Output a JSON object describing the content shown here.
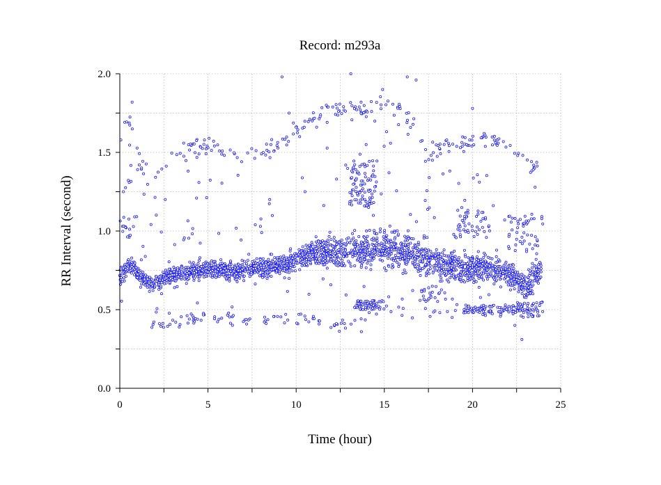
{
  "chart_data": {
    "type": "scatter",
    "title": "Record:  m293a",
    "xlabel": "Time (hour)",
    "ylabel": "RR Interval (second)",
    "xlim": [
      0,
      25
    ],
    "ylim": [
      0,
      2
    ],
    "xticks": [
      0,
      5,
      10,
      15,
      20,
      25
    ],
    "xtick_labels": [
      "0",
      "5",
      "10",
      "15",
      "20",
      "25"
    ],
    "yticks": [
      0,
      0.5,
      1,
      1.5,
      2
    ],
    "ytick_labels": [
      "0.0",
      "0.5",
      "1.0",
      "1.5",
      "2.0"
    ],
    "grid": true,
    "marker_color": "#1c1cf0",
    "band_anchors": [
      [
        0.0,
        0.72
      ],
      [
        0.5,
        0.78
      ],
      [
        0.8,
        0.77
      ],
      [
        1.2,
        0.7
      ],
      [
        1.8,
        0.66
      ],
      [
        2.5,
        0.7
      ],
      [
        3.5,
        0.73
      ],
      [
        4.5,
        0.75
      ],
      [
        5.5,
        0.76
      ],
      [
        6.5,
        0.74
      ],
      [
        7.5,
        0.76
      ],
      [
        8.5,
        0.77
      ],
      [
        9.5,
        0.8
      ],
      [
        10.5,
        0.85
      ],
      [
        11.5,
        0.86
      ],
      [
        12.5,
        0.87
      ],
      [
        13.5,
        0.88
      ],
      [
        14.5,
        0.9
      ],
      [
        15.5,
        0.88
      ],
      [
        16.5,
        0.85
      ],
      [
        17.5,
        0.82
      ],
      [
        18.5,
        0.78
      ],
      [
        19.5,
        0.76
      ],
      [
        20.5,
        0.77
      ],
      [
        21.5,
        0.75
      ],
      [
        22.5,
        0.7
      ],
      [
        23.0,
        0.65
      ],
      [
        23.5,
        0.7
      ],
      [
        23.9,
        0.76
      ]
    ],
    "band_spread": [
      [
        0.0,
        0.08
      ],
      [
        1.0,
        0.06
      ],
      [
        9.0,
        0.07
      ],
      [
        11.0,
        0.11
      ],
      [
        15.0,
        0.14
      ],
      [
        17.0,
        0.13
      ],
      [
        21.0,
        0.1
      ],
      [
        23.9,
        0.12
      ]
    ],
    "clusters": [
      {
        "x": [
          13.0,
          14.6
        ],
        "y": [
          1.15,
          1.45
        ],
        "n": 90
      },
      {
        "x": [
          13.3,
          15.0
        ],
        "y": [
          0.5,
          0.56
        ],
        "n": 60
      },
      {
        "x": [
          19.5,
          22.5
        ],
        "y": [
          0.48,
          0.53
        ],
        "n": 70
      },
      {
        "x": [
          19.0,
          21.0
        ],
        "y": [
          0.95,
          1.15
        ],
        "n": 45
      },
      {
        "x": [
          22.5,
          24.0
        ],
        "y": [
          0.45,
          0.55
        ],
        "n": 45
      },
      {
        "x": [
          22.0,
          24.0
        ],
        "y": [
          0.85,
          1.1
        ],
        "n": 45
      },
      {
        "x": [
          0.0,
          1.0
        ],
        "y": [
          0.95,
          1.1
        ],
        "n": 15
      },
      {
        "x": [
          17.0,
          18.5
        ],
        "y": [
          0.55,
          0.65
        ],
        "n": 25
      }
    ],
    "outlier_track": [
      [
        0.0,
        1.55
      ],
      [
        0.4,
        1.7
      ],
      [
        0.8,
        1.6
      ],
      [
        1.2,
        1.4
      ],
      [
        2.0,
        1.33
      ],
      [
        3.0,
        1.45
      ],
      [
        4.0,
        1.52
      ],
      [
        5.0,
        1.55
      ],
      [
        6.0,
        1.52
      ],
      [
        7.0,
        1.48
      ],
      [
        8.0,
        1.48
      ],
      [
        9.0,
        1.55
      ],
      [
        10.0,
        1.64
      ],
      [
        11.0,
        1.72
      ],
      [
        12.0,
        1.77
      ],
      [
        13.0,
        1.78
      ],
      [
        14.0,
        1.77
      ],
      [
        15.0,
        1.82
      ],
      [
        16.0,
        1.78
      ],
      [
        16.8,
        1.65
      ],
      [
        17.5,
        1.45
      ],
      [
        18.5,
        1.57
      ],
      [
        19.5,
        1.55
      ],
      [
        20.5,
        1.58
      ],
      [
        21.5,
        1.57
      ],
      [
        22.5,
        1.5
      ],
      [
        23.5,
        1.4
      ],
      [
        23.9,
        1.5
      ]
    ],
    "lower_track": [
      [
        1.5,
        0.42
      ],
      [
        2.5,
        0.4
      ],
      [
        3.5,
        0.42
      ],
      [
        5.0,
        0.45
      ],
      [
        6.5,
        0.44
      ],
      [
        7.5,
        0.43
      ],
      [
        8.5,
        0.44
      ],
      [
        9.5,
        0.46
      ],
      [
        12.5,
        0.4
      ],
      [
        13.5,
        0.45
      ],
      [
        14.5,
        0.5
      ],
      [
        16.0,
        0.48
      ],
      [
        17.0,
        0.47
      ],
      [
        18.5,
        0.48
      ],
      [
        20.0,
        0.5
      ],
      [
        21.0,
        0.49
      ],
      [
        22.0,
        0.48
      ],
      [
        23.0,
        0.47
      ],
      [
        23.9,
        0.48
      ]
    ],
    "extreme_points": [
      [
        9.2,
        1.98
      ],
      [
        13.1,
        2.0
      ],
      [
        16.3,
        1.98
      ],
      [
        16.8,
        1.96
      ],
      [
        14.9,
        1.9
      ],
      [
        0.7,
        1.82
      ],
      [
        20.0,
        1.78
      ],
      [
        9.6,
        1.75
      ],
      [
        12.4,
        1.76
      ],
      [
        22.8,
        0.31
      ],
      [
        13.7,
        0.36
      ],
      [
        22.4,
        0.4
      ],
      [
        0.2,
        1.25
      ],
      [
        8.5,
        1.2
      ],
      [
        10.5,
        1.25
      ]
    ]
  }
}
